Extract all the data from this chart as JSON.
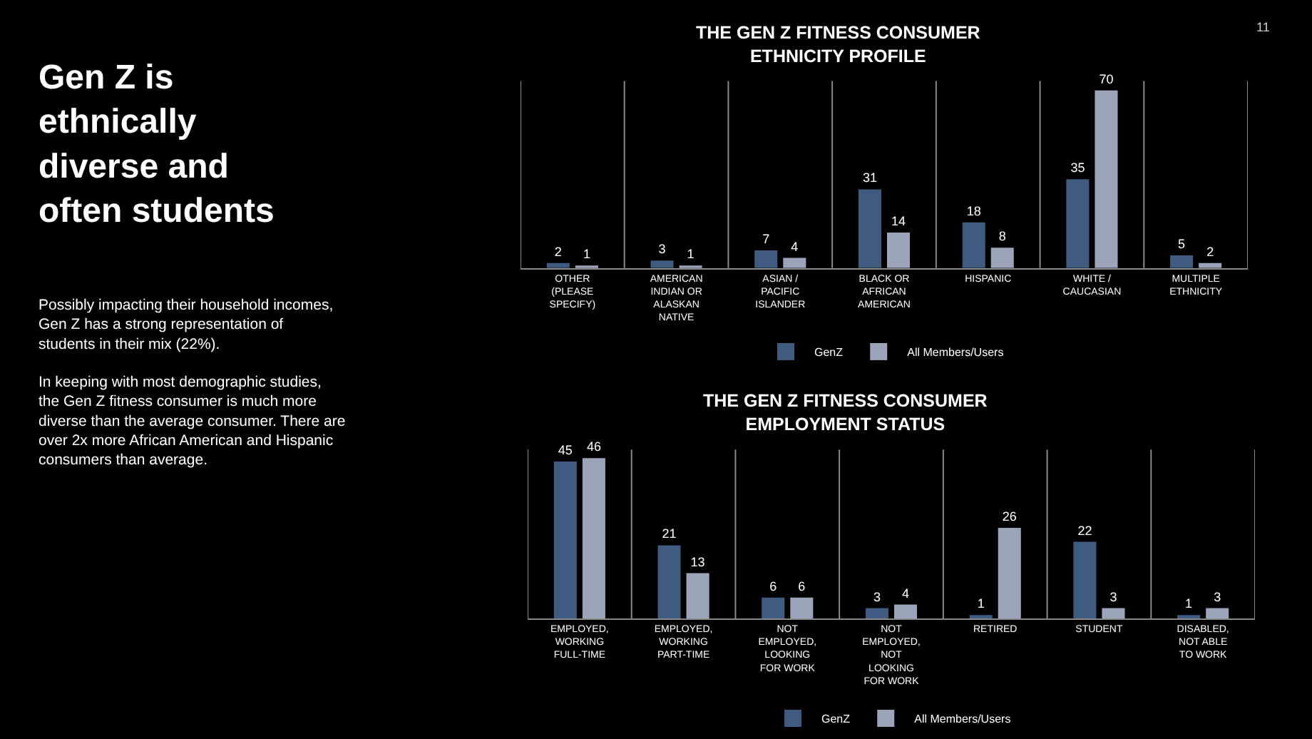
{
  "chart_data": [
    {
      "type": "bar",
      "title": "THE GEN Z FITNESS CONSUMER ETHNICITY PROFILE",
      "categories": [
        "OTHER (PLEASE SPECIFY)",
        "AMERICAN INDIAN OR ALASKAN NATIVE",
        "ASIAN / PACIFIC ISLANDER",
        "BLACK OR AFRICAN AMERICAN",
        "HISPANIC",
        "WHITE / CAUCASIAN",
        "MULTIPLE ETHNICITY"
      ],
      "series": [
        {
          "name": "GenZ",
          "color": "#3f5b80",
          "values": [
            2,
            3,
            7,
            31,
            18,
            35,
            5
          ]
        },
        {
          "name": "All Members/Users",
          "color": "#9ba4b8",
          "values": [
            1,
            1,
            4,
            14,
            8,
            70,
            2
          ]
        }
      ],
      "data_labels": true,
      "grid": "x",
      "legend": "bottom",
      "tick_labels": "x"
    },
    {
      "type": "bar",
      "title": "THE GEN Z FITNESS CONSUMER EMPLOYMENT STATUS",
      "categories": [
        "EMPLOYED, WORKING FULL-TIME",
        "EMPLOYED, WORKING PART-TIME",
        "NOT EMPLOYED, LOOKING FOR WORK",
        "NOT EMPLOYED, NOT LOOKING FOR WORK",
        "RETIRED",
        "STUDENT",
        "DISABLED, NOT ABLE TO WORK"
      ],
      "series": [
        {
          "name": "GenZ",
          "color": "#3f5b80",
          "values": [
            45,
            21,
            6,
            3,
            1,
            22,
            1
          ]
        },
        {
          "name": "All Members/Users",
          "color": "#9ba4b8",
          "values": [
            46,
            13,
            6,
            4,
            26,
            3,
            3
          ]
        }
      ],
      "data_labels": true,
      "grid": "x",
      "legend": "bottom",
      "tick_labels": "x"
    },
    {
      "type": "other",
      "title": "Gen Z is ethnically diverse and often students",
      "annotations": [
        "Possibly impacting their household incomes, Gen Z has a strong representation of students in their mix (22%).",
        "In keeping with most demographic studies, the Gen Z fitness consumer is much more diverse than the average consumer. There are over 2x more African American and Hispanic consumers than average.",
        "11"
      ]
    }
  ]
}
